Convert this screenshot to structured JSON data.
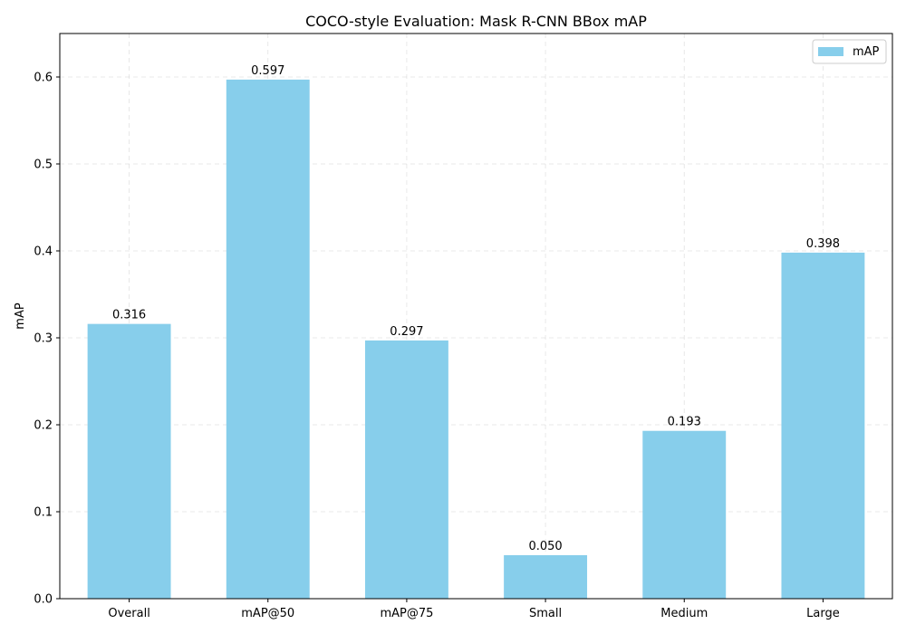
{
  "chart_data": {
    "type": "bar",
    "title": "COCO-style Evaluation: Mask R-CNN BBox mAP",
    "xlabel": "",
    "ylabel": "mAP",
    "categories": [
      "Overall",
      "mAP@50",
      "mAP@75",
      "Small",
      "Medium",
      "Large"
    ],
    "values": [
      0.316,
      0.597,
      0.297,
      0.05,
      0.193,
      0.398
    ],
    "value_labels": [
      "0.316",
      "0.597",
      "0.297",
      "0.050",
      "0.193",
      "0.398"
    ],
    "ylim": [
      0,
      0.65
    ],
    "yticks": [
      0.0,
      0.1,
      0.2,
      0.3,
      0.4,
      0.5,
      0.6
    ],
    "ytick_labels": [
      "0.0",
      "0.1",
      "0.2",
      "0.3",
      "0.4",
      "0.5",
      "0.6"
    ],
    "grid": true,
    "legend": {
      "position": "top-right",
      "entries": [
        {
          "label": "mAP",
          "color": "#87ceeb"
        }
      ]
    },
    "bar_color": "#87ceeb"
  }
}
